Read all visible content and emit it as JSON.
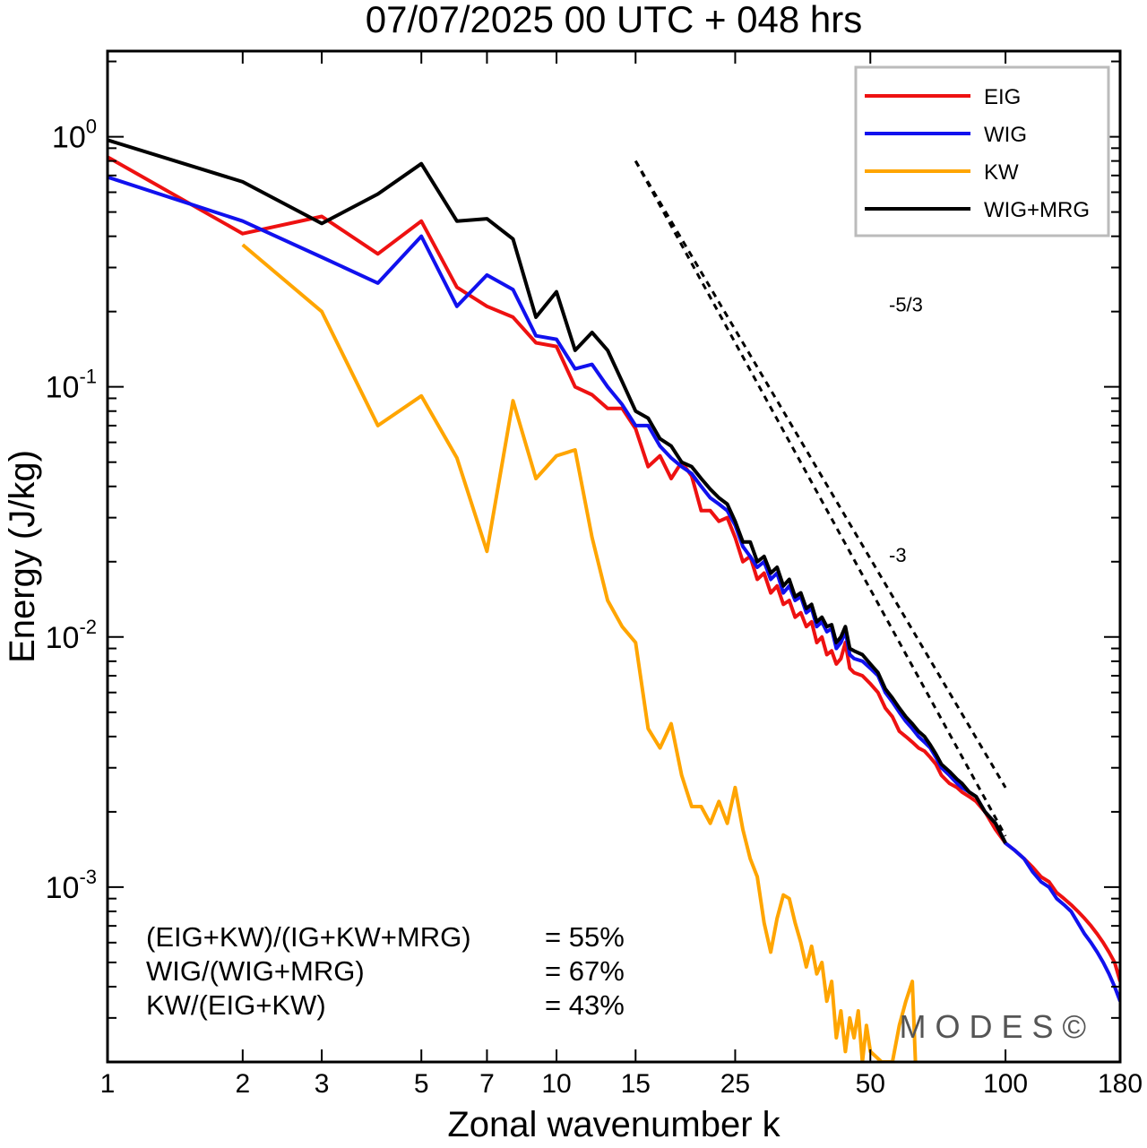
{
  "chart_data": {
    "type": "line",
    "title": "07/07/2025  00 UTC  + 048 hrs",
    "xlabel": "Zonal wavenumber k",
    "ylabel": "Energy (J/kg)",
    "xscale": "log",
    "yscale": "log",
    "xlim": [
      1,
      180
    ],
    "ylim": [
      0.0002,
      2.2
    ],
    "xticks": [
      1,
      2,
      3,
      5,
      7,
      10,
      15,
      25,
      50,
      100,
      180
    ],
    "xtick_labels": [
      "1",
      "2",
      "3",
      "5",
      "7",
      "10",
      "15",
      "25",
      "50",
      "100",
      "180"
    ],
    "yticks": [
      {
        "value": 1,
        "base": "10",
        "exp": "0"
      },
      {
        "value": 0.1,
        "base": "10",
        "exp": "-1"
      },
      {
        "value": 0.01,
        "base": "10",
        "exp": "-2"
      },
      {
        "value": 0.001,
        "base": "10",
        "exp": "-3"
      }
    ],
    "legend": {
      "position": "top-right",
      "entries": [
        {
          "name": "EIG",
          "color": "#ee1111"
        },
        {
          "name": "WIG",
          "color": "#1111ee"
        },
        {
          "name": "KW",
          "color": "#ffa500"
        },
        {
          "name": "WIG+MRG",
          "color": "#000000"
        }
      ]
    },
    "series": [
      {
        "name": "EIG",
        "color": "#ee1111",
        "points": [
          [
            1,
            0.83
          ],
          [
            2,
            0.41
          ],
          [
            3,
            0.48
          ],
          [
            4,
            0.34
          ],
          [
            5,
            0.46
          ],
          [
            6,
            0.25
          ],
          [
            7,
            0.21
          ],
          [
            8,
            0.19
          ],
          [
            9,
            0.15
          ],
          [
            10,
            0.145
          ],
          [
            11,
            0.1
          ],
          [
            12,
            0.093
          ],
          [
            13,
            0.082
          ],
          [
            14,
            0.082
          ],
          [
            15,
            0.068
          ],
          [
            16,
            0.048
          ],
          [
            17,
            0.053
          ],
          [
            18,
            0.043
          ],
          [
            19,
            0.05
          ],
          [
            20,
            0.044
          ],
          [
            21,
            0.032
          ],
          [
            22,
            0.032
          ],
          [
            23,
            0.029
          ],
          [
            24,
            0.03
          ],
          [
            25,
            0.025
          ],
          [
            26,
            0.02
          ],
          [
            27,
            0.021
          ],
          [
            28,
            0.017
          ],
          [
            29,
            0.018
          ],
          [
            30,
            0.015
          ],
          [
            31,
            0.016
          ],
          [
            32,
            0.0135
          ],
          [
            33,
            0.014
          ],
          [
            34,
            0.012
          ],
          [
            35,
            0.0125
          ],
          [
            36,
            0.011
          ],
          [
            37,
            0.0115
          ],
          [
            38,
            0.0095
          ],
          [
            39,
            0.01
          ],
          [
            40,
            0.0085
          ],
          [
            41,
            0.0088
          ],
          [
            42,
            0.0078
          ],
          [
            43,
            0.0082
          ],
          [
            44,
            0.0095
          ],
          [
            45,
            0.0075
          ],
          [
            46,
            0.0072
          ],
          [
            48,
            0.007
          ],
          [
            50,
            0.0065
          ],
          [
            52,
            0.006
          ],
          [
            54,
            0.0052
          ],
          [
            56,
            0.0048
          ],
          [
            58,
            0.0042
          ],
          [
            60,
            0.004
          ],
          [
            62,
            0.0038
          ],
          [
            64,
            0.0036
          ],
          [
            66,
            0.0035
          ],
          [
            68,
            0.0033
          ],
          [
            70,
            0.0031
          ],
          [
            72,
            0.0028
          ],
          [
            75,
            0.0026
          ],
          [
            78,
            0.0025
          ],
          [
            80,
            0.0024
          ],
          [
            83,
            0.0023
          ],
          [
            86,
            0.0022
          ],
          [
            90,
            0.002
          ],
          [
            95,
            0.0017
          ],
          [
            100,
            0.0015
          ],
          [
            105,
            0.0014
          ],
          [
            110,
            0.0013
          ],
          [
            115,
            0.0012
          ],
          [
            120,
            0.0011
          ],
          [
            125,
            0.00105
          ],
          [
            130,
            0.00095
          ],
          [
            135,
            0.0009
          ],
          [
            140,
            0.00085
          ],
          [
            145,
            0.0008
          ],
          [
            150,
            0.00075
          ],
          [
            155,
            0.0007
          ],
          [
            160,
            0.00065
          ],
          [
            165,
            0.0006
          ],
          [
            170,
            0.00055
          ],
          [
            175,
            0.0005
          ],
          [
            180,
            0.00042
          ]
        ]
      },
      {
        "name": "WIG",
        "color": "#1111ee",
        "points": [
          [
            1,
            0.69
          ],
          [
            2,
            0.46
          ],
          [
            3,
            0.33
          ],
          [
            4,
            0.26
          ],
          [
            5,
            0.4
          ],
          [
            6,
            0.21
          ],
          [
            7,
            0.28
          ],
          [
            8,
            0.245
          ],
          [
            9,
            0.16
          ],
          [
            10,
            0.155
          ],
          [
            11,
            0.118
          ],
          [
            12,
            0.123
          ],
          [
            13,
            0.1
          ],
          [
            14,
            0.085
          ],
          [
            15,
            0.07
          ],
          [
            16,
            0.07
          ],
          [
            17,
            0.058
          ],
          [
            18,
            0.052
          ],
          [
            19,
            0.048
          ],
          [
            20,
            0.045
          ],
          [
            21,
            0.04
          ],
          [
            22,
            0.036
          ],
          [
            23,
            0.034
          ],
          [
            24,
            0.032
          ],
          [
            25,
            0.028
          ],
          [
            26,
            0.023
          ],
          [
            27,
            0.021
          ],
          [
            28,
            0.019
          ],
          [
            29,
            0.02
          ],
          [
            30,
            0.017
          ],
          [
            31,
            0.018
          ],
          [
            32,
            0.015
          ],
          [
            33,
            0.016
          ],
          [
            34,
            0.014
          ],
          [
            35,
            0.0145
          ],
          [
            36,
            0.0125
          ],
          [
            37,
            0.013
          ],
          [
            38,
            0.011
          ],
          [
            39,
            0.0115
          ],
          [
            40,
            0.0105
          ],
          [
            41,
            0.0108
          ],
          [
            42,
            0.009
          ],
          [
            43,
            0.0095
          ],
          [
            44,
            0.0105
          ],
          [
            45,
            0.0085
          ],
          [
            46,
            0.0082
          ],
          [
            48,
            0.008
          ],
          [
            50,
            0.0075
          ],
          [
            52,
            0.007
          ],
          [
            54,
            0.006
          ],
          [
            56,
            0.0055
          ],
          [
            58,
            0.005
          ],
          [
            60,
            0.0046
          ],
          [
            62,
            0.0043
          ],
          [
            64,
            0.004
          ],
          [
            66,
            0.0038
          ],
          [
            68,
            0.0036
          ],
          [
            70,
            0.0033
          ],
          [
            72,
            0.003
          ],
          [
            75,
            0.0028
          ],
          [
            78,
            0.0026
          ],
          [
            80,
            0.0025
          ],
          [
            83,
            0.0024
          ],
          [
            86,
            0.0023
          ],
          [
            90,
            0.002
          ],
          [
            95,
            0.0018
          ],
          [
            100,
            0.0015
          ],
          [
            105,
            0.0014
          ],
          [
            110,
            0.0013
          ],
          [
            115,
            0.00115
          ],
          [
            120,
            0.00105
          ],
          [
            125,
            0.001
          ],
          [
            130,
            0.0009
          ],
          [
            135,
            0.00085
          ],
          [
            140,
            0.0008
          ],
          [
            145,
            0.00072
          ],
          [
            150,
            0.00065
          ],
          [
            155,
            0.0006
          ],
          [
            160,
            0.00055
          ],
          [
            165,
            0.0005
          ],
          [
            170,
            0.00045
          ],
          [
            175,
            0.0004
          ],
          [
            180,
            0.00035
          ]
        ]
      },
      {
        "name": "KW",
        "color": "#ffa500",
        "points": [
          [
            2,
            0.37
          ],
          [
            3,
            0.2
          ],
          [
            4,
            0.07
          ],
          [
            5,
            0.092
          ],
          [
            6,
            0.052
          ],
          [
            7,
            0.022
          ],
          [
            8,
            0.088
          ],
          [
            9,
            0.043
          ],
          [
            10,
            0.053
          ],
          [
            11,
            0.056
          ],
          [
            12,
            0.025
          ],
          [
            13,
            0.014
          ],
          [
            14,
            0.011
          ],
          [
            15,
            0.0095
          ],
          [
            16,
            0.0043
          ],
          [
            17,
            0.0036
          ],
          [
            18,
            0.0045
          ],
          [
            19,
            0.0028
          ],
          [
            20,
            0.0021
          ],
          [
            21,
            0.0021
          ],
          [
            22,
            0.0018
          ],
          [
            23,
            0.0022
          ],
          [
            24,
            0.0018
          ],
          [
            25,
            0.0025
          ],
          [
            26,
            0.0017
          ],
          [
            27,
            0.0013
          ],
          [
            28,
            0.0011
          ],
          [
            29,
            0.00072
          ],
          [
            30,
            0.00055
          ],
          [
            31,
            0.00075
          ],
          [
            32,
            0.00093
          ],
          [
            33,
            0.0009
          ],
          [
            34,
            0.00072
          ],
          [
            35,
            0.0006
          ],
          [
            36,
            0.00048
          ],
          [
            37,
            0.00058
          ],
          [
            38,
            0.00045
          ],
          [
            39,
            0.0005
          ],
          [
            40,
            0.00035
          ],
          [
            41,
            0.00042
          ],
          [
            42,
            0.00025
          ],
          [
            43,
            0.00032
          ],
          [
            44,
            0.00022
          ],
          [
            45,
            0.0003
          ],
          [
            46,
            0.00025
          ],
          [
            47,
            0.00032
          ],
          [
            48,
            0.0002
          ],
          [
            49,
            0.00028
          ],
          [
            50,
            0.00022
          ],
          [
            53,
            0.0002
          ],
          [
            56,
            0.0002
          ],
          [
            58,
            0.00028
          ],
          [
            60,
            0.00035
          ],
          [
            62,
            0.00042
          ],
          [
            63,
            0.0002
          ]
        ]
      },
      {
        "name": "WIG+MRG",
        "color": "#000000",
        "points": [
          [
            1,
            0.97
          ],
          [
            2,
            0.66
          ],
          [
            3,
            0.45
          ],
          [
            4,
            0.59
          ],
          [
            5,
            0.78
          ],
          [
            6,
            0.46
          ],
          [
            7,
            0.47
          ],
          [
            8,
            0.39
          ],
          [
            9,
            0.19
          ],
          [
            10,
            0.24
          ],
          [
            11,
            0.14
          ],
          [
            12,
            0.165
          ],
          [
            13,
            0.14
          ],
          [
            14,
            0.105
          ],
          [
            15,
            0.08
          ],
          [
            16,
            0.075
          ],
          [
            17,
            0.062
          ],
          [
            18,
            0.058
          ],
          [
            19,
            0.05
          ],
          [
            20,
            0.048
          ],
          [
            21,
            0.043
          ],
          [
            22,
            0.039
          ],
          [
            23,
            0.036
          ],
          [
            24,
            0.034
          ],
          [
            25,
            0.029
          ],
          [
            26,
            0.024
          ],
          [
            27,
            0.024
          ],
          [
            28,
            0.02
          ],
          [
            29,
            0.021
          ],
          [
            30,
            0.018
          ],
          [
            31,
            0.019
          ],
          [
            32,
            0.016
          ],
          [
            33,
            0.017
          ],
          [
            34,
            0.0145
          ],
          [
            35,
            0.015
          ],
          [
            36,
            0.013
          ],
          [
            37,
            0.0135
          ],
          [
            38,
            0.0115
          ],
          [
            39,
            0.012
          ],
          [
            40,
            0.011
          ],
          [
            41,
            0.0112
          ],
          [
            42,
            0.0095
          ],
          [
            43,
            0.01
          ],
          [
            44,
            0.011
          ],
          [
            45,
            0.009
          ],
          [
            46,
            0.0088
          ],
          [
            48,
            0.0085
          ],
          [
            50,
            0.0078
          ],
          [
            52,
            0.0072
          ],
          [
            54,
            0.0062
          ],
          [
            56,
            0.0057
          ],
          [
            58,
            0.0052
          ],
          [
            60,
            0.0048
          ],
          [
            62,
            0.0045
          ],
          [
            64,
            0.0042
          ],
          [
            66,
            0.004
          ],
          [
            68,
            0.0037
          ],
          [
            70,
            0.0034
          ],
          [
            72,
            0.0031
          ],
          [
            75,
            0.0029
          ],
          [
            78,
            0.0027
          ],
          [
            80,
            0.0026
          ],
          [
            83,
            0.0024
          ],
          [
            86,
            0.0023
          ],
          [
            90,
            0.002
          ],
          [
            95,
            0.0018
          ],
          [
            100,
            0.0015
          ]
        ]
      }
    ],
    "reference_slopes": [
      {
        "label": "-5/3",
        "slope": -1.6667,
        "from": [
          15,
          0.8
        ],
        "to": [
          100,
          0.0016
        ],
        "label_at": [
          55,
          0.2
        ]
      },
      {
        "label": "-3",
        "slope": -3,
        "from": [
          15,
          0.8
        ],
        "to": [
          100,
          0.0025
        ],
        "label_at": [
          55,
          0.02
        ]
      }
    ],
    "annotations": [
      {
        "text": "(EIG+KW)/(IG+KW+MRG)",
        "value": "= 55%"
      },
      {
        "text": "WIG/(WIG+MRG)",
        "value": "= 67%"
      },
      {
        "text": "KW/(EIG+KW)",
        "value": "= 43%"
      }
    ],
    "watermark": "MODES©"
  }
}
